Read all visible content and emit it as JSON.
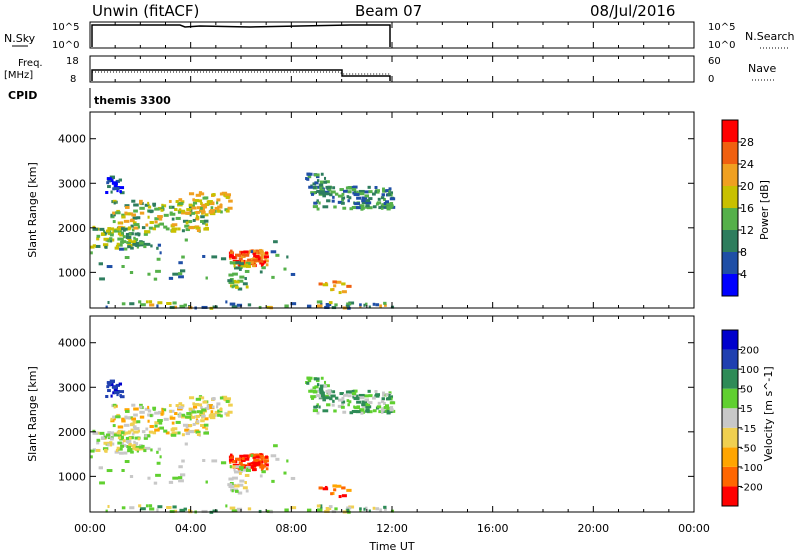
{
  "header": {
    "station": "Unwin (fitACF)",
    "beam": "Beam 07",
    "date": "08/Jul/2016"
  },
  "nsky_panel": {
    "left_label": "N.Sky",
    "right_label": "N.Search",
    "ticks_left": [
      "10^5",
      "10^0"
    ],
    "ticks_right": [
      "10^5",
      "10^0"
    ]
  },
  "freq_panel": {
    "left_label_1": "Freq.",
    "left_label_2": "[MHz]",
    "right_label": "Nave",
    "ticks_left": [
      "18",
      "8"
    ],
    "ticks_right": [
      "60",
      "0"
    ]
  },
  "cpid": {
    "label": "CPID",
    "value": "themis 3300"
  },
  "colors": {
    "power_scale": [
      "#0000ff",
      "#1f4fa6",
      "#2e7d5e",
      "#55b04a",
      "#c8c000",
      "#f0a020",
      "#f06010",
      "#ff0000"
    ],
    "velocity_scale": [
      "#ff0000",
      "#ff6600",
      "#ffa500",
      "#f0d050",
      "#c8c8c8",
      "#60d030",
      "#2e8b57",
      "#2040b0",
      "#0000cc"
    ]
  },
  "chart_data": [
    {
      "type": "heatmap",
      "name": "power",
      "ylabel": "Slant Range [km]",
      "yticks": [
        "1000",
        "2000",
        "3000",
        "4000"
      ],
      "ylim": [
        200,
        4600
      ],
      "xlim": [
        0,
        24
      ],
      "colorbar_label": "Power [dB]",
      "colorbar_ticks": [
        "4",
        "8",
        "12",
        "16",
        "20",
        "24",
        "28"
      ],
      "colorbar_range": [
        0,
        32
      ]
    },
    {
      "type": "heatmap",
      "name": "velocity",
      "ylabel": "Slant Range [km]",
      "yticks": [
        "1000",
        "2000",
        "3000",
        "4000"
      ],
      "ylim": [
        200,
        4600
      ],
      "xlim": [
        0,
        24
      ],
      "colorbar_label": "Velocity [m s^-1]",
      "colorbar_ticks": [
        "200",
        "100",
        "50",
        "15",
        "-15",
        "-50",
        "-100",
        "-200"
      ],
      "colorbar_range": [
        -250,
        250
      ]
    }
  ],
  "xaxis": {
    "label": "Time UT",
    "ticks": [
      "00:00",
      "04:00",
      "08:00",
      "12:00",
      "16:00",
      "20:00",
      "00:00"
    ]
  }
}
